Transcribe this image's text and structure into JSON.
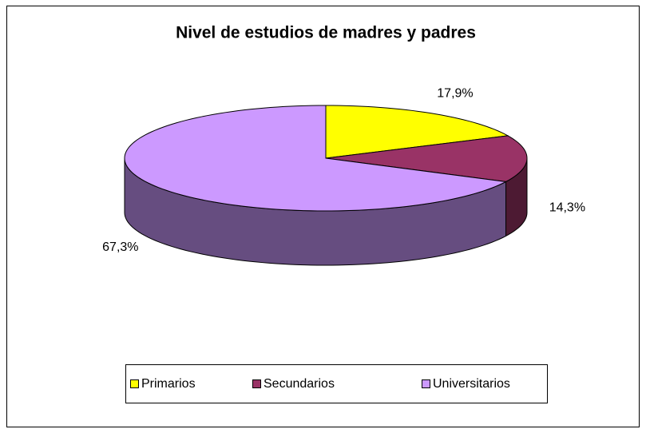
{
  "chart_data": {
    "type": "pie3d",
    "title": "Nivel de estudios de madres y padres",
    "categories": [
      "Primarios",
      "Secundarios",
      "Universitarios"
    ],
    "values": [
      17.9,
      14.3,
      67.3
    ],
    "value_labels": [
      "17,9%",
      "14,3%",
      "67,3%"
    ],
    "colors": [
      "#ffff00",
      "#993366",
      "#cc99ff"
    ],
    "legend": "bottom"
  }
}
